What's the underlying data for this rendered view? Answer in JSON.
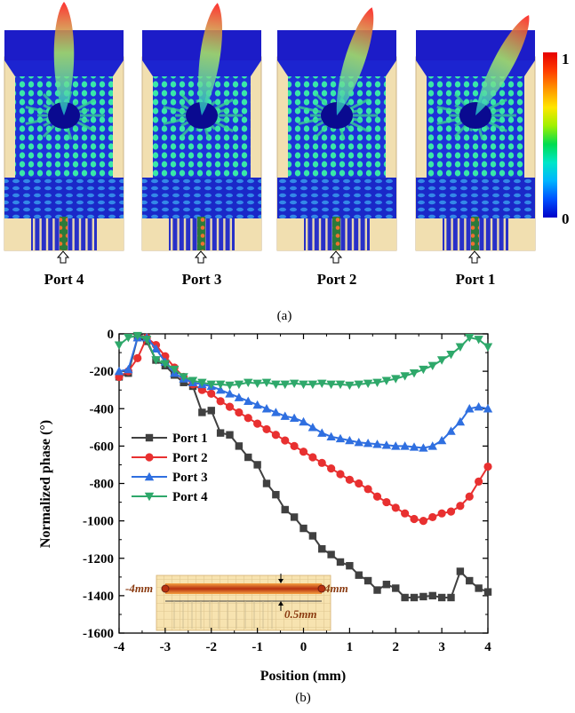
{
  "panel_a": {
    "ports": [
      "Port 4",
      "Port 3",
      "Port 2",
      "Port 1"
    ],
    "beam_tilt_deg": [
      0,
      8,
      18,
      28
    ],
    "colorbar": {
      "max_label": "1",
      "min_label": "0",
      "stops": [
        "#0000c8",
        "#0050ff",
        "#00b4ff",
        "#00e6c8",
        "#00dc50",
        "#a0f000",
        "#ffe600",
        "#ff9600",
        "#ff3c00",
        "#e60000"
      ]
    },
    "caption": "(a)"
  },
  "panel_b": {
    "caption": "(b)"
  },
  "chart_data": {
    "type": "line",
    "xlabel": "Position (mm)",
    "ylabel": "Normalized phase (°)",
    "xlim": [
      -4,
      4
    ],
    "ylim": [
      -1600,
      0
    ],
    "x_ticks": [
      "-4",
      "-3",
      "-2",
      "-1",
      "0",
      "1",
      "2",
      "3",
      "4"
    ],
    "y_ticks": [
      "0",
      "-200",
      "-400",
      "-600",
      "-800",
      "-1000",
      "-1200",
      "-1400",
      "-1600"
    ],
    "legend_position": "left",
    "series": [
      {
        "name": "Port 1",
        "color": "#404040",
        "marker": "square",
        "x": [
          -4,
          -3.8,
          -3.6,
          -3.4,
          -3.2,
          -3,
          -2.8,
          -2.6,
          -2.4,
          -2.2,
          -2,
          -1.8,
          -1.6,
          -1.4,
          -1.2,
          -1,
          -0.8,
          -0.6,
          -0.4,
          -0.2,
          0,
          0.2,
          0.4,
          0.6,
          0.8,
          1,
          1.2,
          1.4,
          1.6,
          1.8,
          2,
          2.2,
          2.4,
          2.6,
          2.8,
          3,
          3.2,
          3.4,
          3.6,
          3.8,
          4
        ],
        "y": [
          -230,
          -210,
          -20,
          -40,
          -140,
          -170,
          -220,
          -260,
          -280,
          -420,
          -410,
          -530,
          -540,
          -600,
          -660,
          -700,
          -800,
          -860,
          -940,
          -980,
          -1040,
          -1080,
          -1150,
          -1180,
          -1220,
          -1240,
          -1290,
          -1320,
          -1370,
          -1340,
          -1360,
          -1410,
          -1410,
          -1405,
          -1400,
          -1410,
          -1410,
          -1270,
          -1320,
          -1360,
          -1380
        ]
      },
      {
        "name": "Port 2",
        "color": "#e83030",
        "marker": "circle",
        "x": [
          -4,
          -3.8,
          -3.6,
          -3.4,
          -3.2,
          -3,
          -2.8,
          -2.6,
          -2.4,
          -2.2,
          -2,
          -1.8,
          -1.6,
          -1.4,
          -1.2,
          -1,
          -0.8,
          -0.6,
          -0.4,
          -0.2,
          0,
          0.2,
          0.4,
          0.6,
          0.8,
          1,
          1.2,
          1.4,
          1.6,
          1.8,
          2,
          2.2,
          2.4,
          2.6,
          2.8,
          3,
          3.2,
          3.4,
          3.6,
          3.8,
          4
        ],
        "y": [
          -230,
          -200,
          -130,
          -20,
          -60,
          -120,
          -180,
          -230,
          -270,
          -300,
          -320,
          -360,
          -390,
          -420,
          -450,
          -480,
          -510,
          -540,
          -570,
          -600,
          -630,
          -660,
          -690,
          -720,
          -750,
          -780,
          -800,
          -830,
          -870,
          -900,
          -930,
          -960,
          -990,
          -1000,
          -980,
          -960,
          -950,
          -920,
          -870,
          -790,
          -710
        ]
      },
      {
        "name": "Port 3",
        "color": "#2f6fe0",
        "marker": "triangle-up",
        "x": [
          -4,
          -3.8,
          -3.6,
          -3.4,
          -3.2,
          -3,
          -2.8,
          -2.6,
          -2.4,
          -2.2,
          -2,
          -1.8,
          -1.6,
          -1.4,
          -1.2,
          -1,
          -0.8,
          -0.6,
          -0.4,
          -0.2,
          0,
          0.2,
          0.4,
          0.6,
          0.8,
          1,
          1.2,
          1.4,
          1.6,
          1.8,
          2,
          2.2,
          2.4,
          2.6,
          2.8,
          3,
          3.2,
          3.4,
          3.6,
          3.8,
          4
        ],
        "y": [
          -200,
          -190,
          -20,
          -20,
          -80,
          -150,
          -210,
          -240,
          -260,
          -270,
          -280,
          -300,
          -320,
          -340,
          -360,
          -380,
          -400,
          -420,
          -440,
          -450,
          -470,
          -500,
          -530,
          -550,
          -560,
          -570,
          -580,
          -585,
          -590,
          -595,
          -600,
          -600,
          -605,
          -610,
          -600,
          -570,
          -520,
          -470,
          -400,
          -390,
          -400
        ]
      },
      {
        "name": "Port 4",
        "color": "#2ea86a",
        "marker": "triangle-down",
        "x": [
          -4,
          -3.8,
          -3.6,
          -3.4,
          -3.2,
          -3,
          -2.8,
          -2.6,
          -2.4,
          -2.2,
          -2,
          -1.8,
          -1.6,
          -1.4,
          -1.2,
          -1,
          -0.8,
          -0.6,
          -0.4,
          -0.2,
          0,
          0.2,
          0.4,
          0.6,
          0.8,
          1,
          1.2,
          1.4,
          1.6,
          1.8,
          2,
          2.2,
          2.4,
          2.6,
          2.8,
          3,
          3.2,
          3.4,
          3.6,
          3.8,
          4
        ],
        "y": [
          -60,
          -20,
          -10,
          -30,
          -140,
          -160,
          -190,
          -230,
          -250,
          -260,
          -270,
          -270,
          -275,
          -270,
          -260,
          -265,
          -260,
          -270,
          -270,
          -265,
          -270,
          -270,
          -265,
          -270,
          -270,
          -275,
          -270,
          -265,
          -260,
          -250,
          -240,
          -225,
          -210,
          -190,
          -170,
          -140,
          -110,
          -70,
          -20,
          -30,
          -70
        ]
      }
    ]
  },
  "inset": {
    "label_left": "-4mm",
    "label_right": "4mm",
    "label_bottom": "0.5mm"
  }
}
